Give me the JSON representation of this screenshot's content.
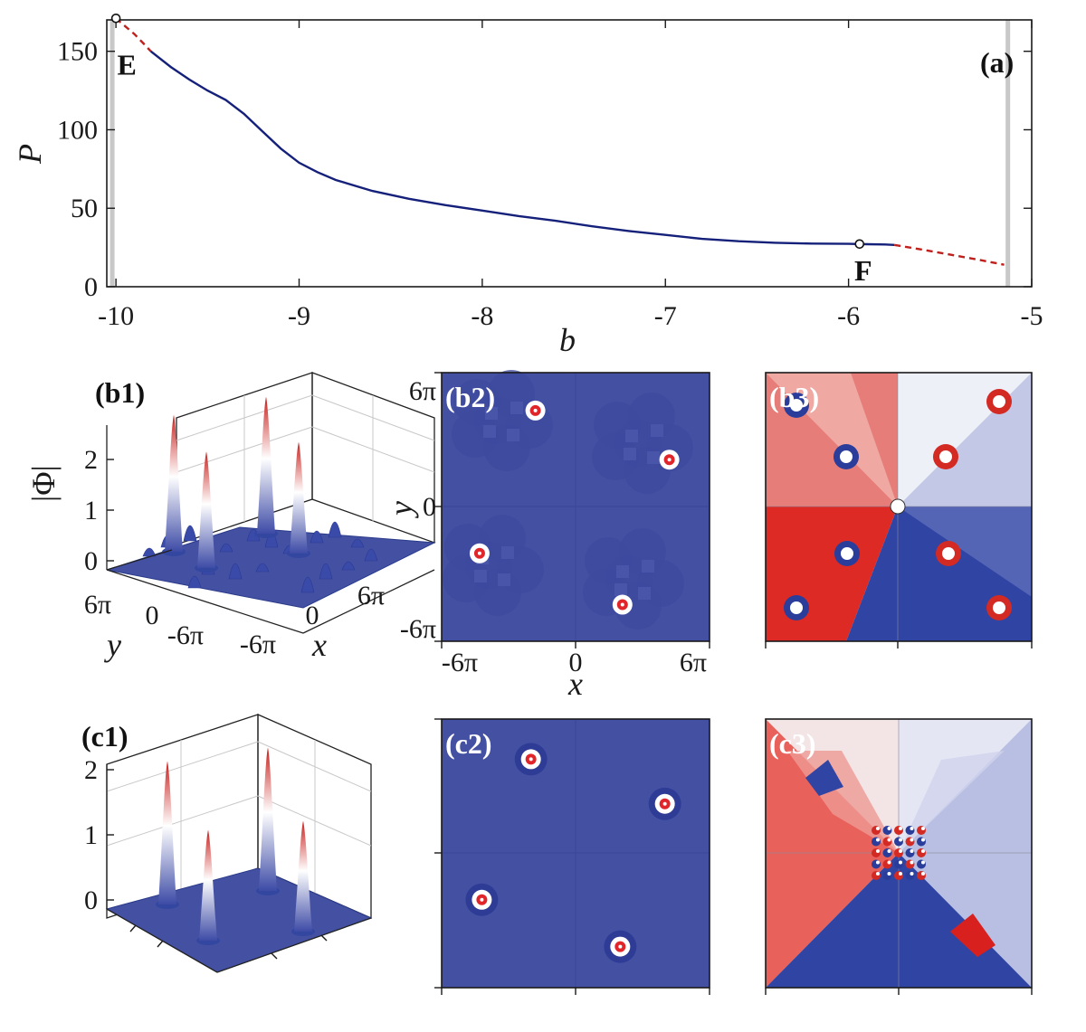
{
  "colors": {
    "stable": "#14207a",
    "unstable": "#c0201c",
    "gap": "#c8c8c8",
    "field": "#4451a3",
    "phase_pos": "#d32a24",
    "phase_neg": "#2a3d9b"
  },
  "chart_data": [
    {
      "id": "a",
      "type": "line",
      "panel_label": "(a)",
      "xlabel": "b",
      "ylabel": "P",
      "xlim": [
        -10.05,
        -5
      ],
      "ylim": [
        0,
        170
      ],
      "xticks": [
        -10,
        -9,
        -8,
        -7,
        -6,
        -5
      ],
      "xtick_labels": [
        "-10",
        "-9",
        "-8",
        "-7",
        "-6",
        "-5"
      ],
      "yticks": [
        0,
        50,
        100,
        150
      ],
      "ytick_labels": [
        "0",
        "50",
        "100",
        "150"
      ],
      "gap_edges": [
        -10.02,
        -5.13
      ],
      "series": [
        {
          "style": "unstable-dashed",
          "x": [
            -10.0,
            -9.95,
            -9.9,
            -9.85,
            -9.81
          ],
          "y": [
            171,
            166,
            161,
            155,
            150
          ]
        },
        {
          "style": "stable-solid",
          "x": [
            -9.81,
            -9.7,
            -9.6,
            -9.5,
            -9.4,
            -9.3,
            -9.2,
            -9.1,
            -9.0,
            -8.9,
            -8.8,
            -8.6,
            -8.4,
            -8.2,
            -8.0,
            -7.8,
            -7.6,
            -7.4,
            -7.2,
            -7.0,
            -6.8,
            -6.6,
            -6.4,
            -6.2,
            -6.0,
            -5.9,
            -5.8,
            -5.75
          ],
          "y": [
            150,
            140,
            132,
            125,
            119,
            110,
            99,
            88,
            79,
            73,
            68,
            61,
            56,
            52,
            48.5,
            45,
            42,
            38.5,
            35.5,
            33,
            30.5,
            29,
            28,
            27.5,
            27.3,
            27.1,
            26.9,
            26.6
          ]
        },
        {
          "style": "unstable-dashed",
          "x": [
            -5.75,
            -5.6,
            -5.45,
            -5.3,
            -5.15
          ],
          "y": [
            26.6,
            23.7,
            20.6,
            17.4,
            14
          ]
        }
      ],
      "points": [
        {
          "label": "E",
          "x": -10.0,
          "y": 171
        },
        {
          "label": "F",
          "x": -5.94,
          "y": 27.2
        }
      ]
    },
    {
      "id": "b1",
      "type": "surface",
      "panel_label": "(b1)",
      "zlabel": "|Φ|",
      "ylabel": "y",
      "xlabel": "x",
      "zticks": [
        "0",
        "1",
        "2"
      ],
      "yticks": [
        "6π",
        "0",
        "-6π"
      ],
      "xticks": [
        "-6π",
        "0",
        "6π"
      ],
      "peak_heights": [
        2.7,
        2.3,
        2.7,
        2.2
      ]
    },
    {
      "id": "b2",
      "type": "heatmap",
      "panel_label": "(b2)",
      "xlabel": "x",
      "ylabel": "y",
      "xticks": [
        "-6π",
        "0",
        "6π"
      ],
      "yticks": [
        "6π",
        "0",
        "-6π"
      ],
      "peaks": [
        [
          -1.8,
          4.3
        ],
        [
          4.2,
          2.1
        ],
        [
          -4.3,
          -2.1
        ],
        [
          2.1,
          -4.4
        ]
      ]
    },
    {
      "id": "b3",
      "type": "heatmap",
      "panel_label": "(b3)"
    },
    {
      "id": "c1",
      "type": "surface",
      "panel_label": "(c1)",
      "zticks": [
        "0",
        "1",
        "2"
      ],
      "peak_heights": [
        2.2,
        1.7,
        2.2,
        1.7
      ]
    },
    {
      "id": "c2",
      "type": "heatmap",
      "panel_label": "(c2)",
      "peaks": [
        [
          -2.0,
          4.2
        ],
        [
          4.0,
          2.2
        ],
        [
          -4.2,
          -2.1
        ],
        [
          2.0,
          -4.2
        ]
      ]
    },
    {
      "id": "c3",
      "type": "heatmap",
      "panel_label": "(c3)"
    }
  ]
}
